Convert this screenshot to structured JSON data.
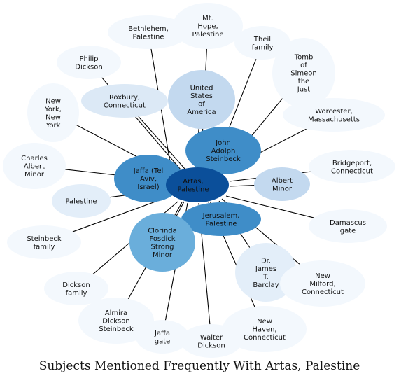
{
  "title": "Subjects Mentioned Frequently With Artas, Palestine",
  "colors": {
    "edge": "#000000",
    "center": "#0b4f9a"
  },
  "center": {
    "label": "Artas,\nPalestine"
  },
  "nodes": [
    {
      "id": "bethlehem",
      "label": "Bethlehem,\nPalestine",
      "color": "#f3f8fd"
    },
    {
      "id": "mt-hope",
      "label": "Mt.\nHope,\nPalestine",
      "color": "#f3f8fd"
    },
    {
      "id": "theil-family",
      "label": "Theil\nfamily",
      "color": "#f3f8fd"
    },
    {
      "id": "tomb-of-simeon",
      "label": "Tomb\nof\nSimeon\nthe\nJust",
      "color": "#f3f8fd"
    },
    {
      "id": "philip-dickson",
      "label": "Philip\nDickson",
      "color": "#f3f8fd"
    },
    {
      "id": "roxbury",
      "label": "Roxbury,\nConnecticut",
      "color": "#dce9f6"
    },
    {
      "id": "united-states",
      "label": "United\nStates\nof\nAmerica",
      "color": "#c3d9ef"
    },
    {
      "id": "worcester",
      "label": "Worcester,\nMassachusetts",
      "color": "#f3f8fd"
    },
    {
      "id": "new-york",
      "label": "New\nYork,\nNew\nYork",
      "color": "#f3f8fd"
    },
    {
      "id": "john-adolph",
      "label": "John\nAdolph\nSteinbeck",
      "color": "#3f8dc8"
    },
    {
      "id": "charles-albert",
      "label": "Charles\nAlbert\nMinor",
      "color": "#f3f8fd"
    },
    {
      "id": "jaffa",
      "label": "Jaffa (Tel\nAviv,\nIsrael)",
      "color": "#3f8dc8"
    },
    {
      "id": "bridgeport",
      "label": "Bridgeport,\nConnecticut",
      "color": "#f3f8fd"
    },
    {
      "id": "albert-minor",
      "label": "Albert\nMinor",
      "color": "#c3d9ef"
    },
    {
      "id": "palestine",
      "label": "Palestine",
      "color": "#e3eef9"
    },
    {
      "id": "steinbeck-family",
      "label": "Steinbeck\nfamily",
      "color": "#f3f8fd"
    },
    {
      "id": "jerusalem",
      "label": "Jerusalem,\nPalestine",
      "color": "#3f8dc8"
    },
    {
      "id": "damascus-gate",
      "label": "Damascus\ngate",
      "color": "#f3f8fd"
    },
    {
      "id": "clorinda",
      "label": "Clorinda\nFosdick\nStrong\nMinor",
      "color": "#6aaedb"
    },
    {
      "id": "dr-james",
      "label": "Dr.\nJames\nT.\nBarclay",
      "color": "#e3eef9"
    },
    {
      "id": "dickson-family",
      "label": "Dickson\nfamily",
      "color": "#f3f8fd"
    },
    {
      "id": "new-milford",
      "label": "New\nMilford,\nConnecticut",
      "color": "#f3f8fd"
    },
    {
      "id": "almira",
      "label": "Almira\nDickson\nSteinbeck",
      "color": "#f3f8fd"
    },
    {
      "id": "jaffa-gate",
      "label": "Jaffa\ngate",
      "color": "#f3f8fd"
    },
    {
      "id": "walter-dickson",
      "label": "Walter\nDickson",
      "color": "#f3f8fd"
    },
    {
      "id": "new-haven",
      "label": "New\nHaven,\nConnecticut",
      "color": "#f3f8fd"
    }
  ]
}
